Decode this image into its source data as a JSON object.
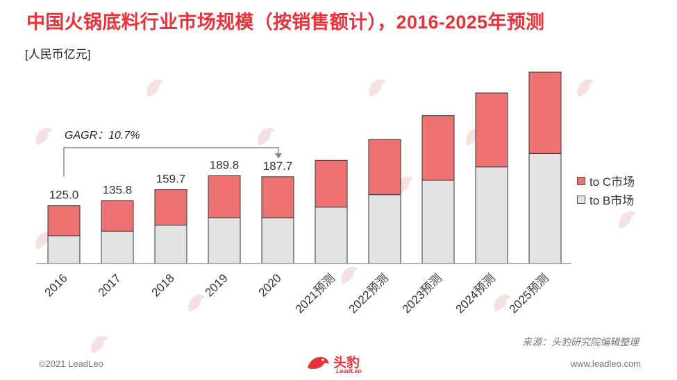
{
  "title": "中国火锅底料行业市场规模（按销售额计），2016-2025年预测",
  "unit": "[人民币亿元]",
  "gagr_label": "GAGR：10.7%",
  "legend": {
    "c_market": "to C市场",
    "b_market": "to B市场"
  },
  "source": "来源：头豹研究院编辑整理",
  "copyright": "©2021 LeadLeo",
  "website": "www.leadleo.com",
  "logo": {
    "brand": "头豹",
    "sub": "LeadLeo"
  },
  "colors": {
    "c_market": "#ec7372",
    "b_market": "#e3e3e3",
    "title": "#e8323a"
  },
  "chart_data": {
    "type": "bar",
    "stacked": true,
    "categories": [
      "2016",
      "2017",
      "2018",
      "2019",
      "2020",
      "2021预测",
      "2022预测",
      "2023预测",
      "2024预测",
      "2025预测"
    ],
    "series": [
      {
        "name": "to B市场",
        "values": [
          60.0,
          70.0,
          83.0,
          99.0,
          99.0,
          122.0,
          149.0,
          180.0,
          209.0,
          238.0
        ]
      },
      {
        "name": "to C市场",
        "values": [
          65.0,
          65.8,
          76.7,
          90.8,
          88.7,
          101.0,
          119.0,
          140.0,
          160.0,
          176.0
        ]
      }
    ],
    "totals_labeled": [
      "125.0",
      "135.8",
      "159.7",
      "189.8",
      "187.7"
    ],
    "ylim": [
      0,
      420
    ],
    "grid": false,
    "legend_position": "right"
  }
}
